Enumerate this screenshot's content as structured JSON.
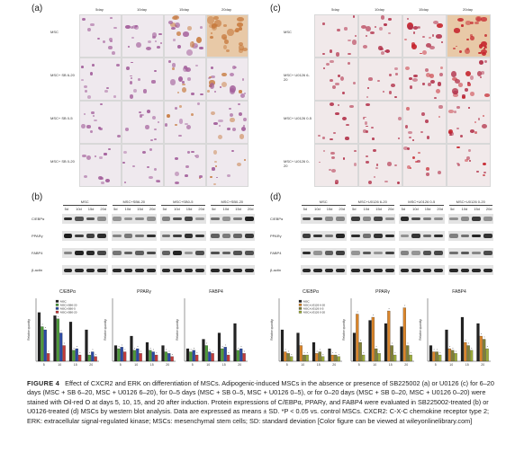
{
  "panels": {
    "a": "(a)",
    "b": "(b)",
    "c": "(c)",
    "d": "(d)"
  },
  "stain": {
    "day_headers": [
      "5day",
      "10day",
      "15day",
      "20day"
    ],
    "left_rows": [
      "MSC",
      "MSC+ SB 6-20",
      "MSC+ SB 0-5",
      "MSC+ SB 0-20"
    ],
    "right_rows": [
      "MSC",
      "MSC+ U0126 6-20",
      "MSC+ U0126 0-5",
      "MSC+ U0126 0-20"
    ],
    "left_colors": {
      "base": "#efe9ee",
      "cell": "#a25d9a",
      "late": "#c77a3e"
    },
    "right_colors": {
      "base": "#f1e9ea",
      "cell": "#b2314a",
      "late": "#c5232b"
    }
  },
  "blots": {
    "left_groups": [
      "MSC",
      "MSC+SB6-20",
      "MSC+SB0-5",
      "MSC+SB0-20"
    ],
    "right_groups": [
      "MSC",
      "MSC+U0126 6-20",
      "MSC+U0126 0-5",
      "MSC+U0126 0-20"
    ],
    "lanes": [
      "5d",
      "10d",
      "15d",
      "20d"
    ],
    "proteins": [
      "C/EBPα",
      "PPARγ",
      "FABP4",
      "β-actin"
    ]
  },
  "chart_data": [
    {
      "type": "bar",
      "title": "C/EBPα",
      "ylabel": "Relative quantity",
      "ylim": [
        0,
        2.0
      ],
      "categories": [
        "5",
        "10",
        "15",
        "20"
      ],
      "series": [
        {
          "name": "MSC",
          "values": [
            1.55,
            1.45,
            1.25,
            1.0
          ]
        },
        {
          "name": "MSC+SB6-20",
          "values": [
            1.1,
            1.35,
            0.35,
            0.2
          ]
        },
        {
          "name": "MSC+SB0-5",
          "values": [
            1.0,
            0.9,
            0.4,
            0.3
          ]
        },
        {
          "name": "MSC+SB0-20",
          "values": [
            0.25,
            0.5,
            0.2,
            0.15
          ]
        }
      ]
    },
    {
      "type": "bar",
      "title": "PPARγ",
      "ylabel": "Relative quantity",
      "ylim": [
        0,
        2.0
      ],
      "categories": [
        "5",
        "10",
        "15",
        "20"
      ],
      "series": [
        {
          "name": "MSC",
          "values": [
            0.5,
            0.8,
            0.6,
            0.5
          ]
        },
        {
          "name": "MSC+SB6-20",
          "values": [
            0.4,
            0.35,
            0.35,
            0.3
          ]
        },
        {
          "name": "MSC+SB0-5",
          "values": [
            0.45,
            0.4,
            0.3,
            0.25
          ]
        },
        {
          "name": "MSC+SB0-20",
          "values": [
            0.3,
            0.25,
            0.2,
            0.15
          ]
        }
      ]
    },
    {
      "type": "bar",
      "title": "FABP4",
      "ylabel": "Relative quantity",
      "ylim": [
        0,
        2.0
      ],
      "categories": [
        "5",
        "10",
        "15",
        "20"
      ],
      "series": [
        {
          "name": "MSC",
          "values": [
            0.4,
            0.7,
            0.9,
            1.2
          ]
        },
        {
          "name": "MSC+SB6-20",
          "values": [
            0.3,
            0.5,
            0.4,
            0.35
          ]
        },
        {
          "name": "MSC+SB0-5",
          "values": [
            0.35,
            0.3,
            0.45,
            0.4
          ]
        },
        {
          "name": "MSC+SB0-20",
          "values": [
            0.2,
            0.25,
            0.2,
            0.25
          ]
        }
      ]
    },
    {
      "type": "bar",
      "title": "C/EBPα",
      "ylabel": "Relative quantity",
      "ylim": [
        0,
        2.0
      ],
      "categories": [
        "5",
        "10",
        "15",
        "20"
      ],
      "series": [
        {
          "name": "MSC",
          "values": [
            1.0,
            0.9,
            0.6,
            0.4
          ]
        },
        {
          "name": "MSC+U0126 6-20",
          "values": [
            0.3,
            0.5,
            0.25,
            0.2
          ]
        },
        {
          "name": "MSC+U0126 0-5",
          "values": [
            0.25,
            0.2,
            0.3,
            0.2
          ]
        },
        {
          "name": "MSC+U0126 0-20",
          "values": [
            0.15,
            0.2,
            0.15,
            0.15
          ]
        }
      ]
    },
    {
      "type": "bar",
      "title": "PPARγ",
      "ylabel": "Relative quantity",
      "ylim": [
        0,
        2.0
      ],
      "categories": [
        "5",
        "10",
        "15",
        "20"
      ],
      "series": [
        {
          "name": "MSC",
          "values": [
            0.9,
            1.3,
            1.2,
            1.1
          ]
        },
        {
          "name": "MSC+U0126 6-20",
          "values": [
            1.5,
            1.4,
            1.6,
            1.7
          ]
        },
        {
          "name": "MSC+U0126 0-5",
          "values": [
            0.6,
            0.4,
            0.5,
            0.5
          ]
        },
        {
          "name": "MSC+U0126 0-20",
          "values": [
            0.2,
            0.25,
            0.2,
            0.2
          ]
        }
      ]
    },
    {
      "type": "bar",
      "title": "FABP4",
      "ylabel": "Relative quantity",
      "ylim": [
        0,
        2.0
      ],
      "categories": [
        "5",
        "10",
        "15",
        "20"
      ],
      "series": [
        {
          "name": "MSC",
          "values": [
            0.5,
            1.0,
            1.4,
            1.2
          ]
        },
        {
          "name": "MSC+U0126 6-20",
          "values": [
            0.3,
            0.4,
            0.6,
            0.8
          ]
        },
        {
          "name": "MSC+U0126 0-5",
          "values": [
            0.3,
            0.35,
            0.5,
            0.7
          ]
        },
        {
          "name": "MSC+U0126 0-20",
          "values": [
            0.2,
            0.25,
            0.35,
            0.4
          ]
        }
      ]
    }
  ],
  "series_colors_left": [
    "#222222",
    "#4d9a3a",
    "#2b4aa3",
    "#c23b3b"
  ],
  "series_colors_right": [
    "#222222",
    "#d9842a",
    "#7f7f35",
    "#9aaa3a"
  ],
  "caption": {
    "label": "FIGURE 4",
    "text": "Effect of CXCR2 and ERK on differentiation of MSCs. Adipogenic-induced MSCs in the absence or presence of SB225002 (a) or U0126 (c) for 6–20 days (MSC + SB 6–20, MSC + U0126 6–20), for 0–5 days (MSC + SB 0–5, MSC + U0126 0–5), or for 0–20 days (MSC + SB 0–20, MSC + U0126 0–20) were stained with Oil-red O at days 5, 10, 15, and 20 after induction. Protein expressions of C/EBPα, PPARγ, and FABP4 were evaluated in SB225002-treated (b) or U0126-treated (d) MSCs by western blot analysis. Data are expressed as means ± SD. *P < 0.05 vs. control MSCs. CXCR2: C-X-C chemokine receptor type 2; ERK: extracellular signal-regulated kinase; MSCs: mesenchymal stem cells; SD: standard deviation [Color figure can be viewed at wileyonlinelibrary.com]"
  }
}
